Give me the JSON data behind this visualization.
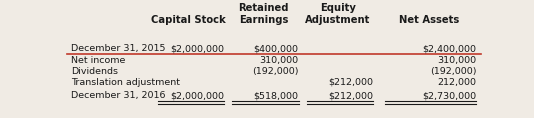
{
  "headers": [
    "",
    "Capital Stock",
    "Retained\nEarnings",
    "Equity\nAdjustment",
    "Net Assets"
  ],
  "rows": [
    [
      "December 31, 2015",
      "$2,000,000",
      "$400,000",
      "",
      "$2,400,000"
    ],
    [
      "Net income",
      "",
      "310,000",
      "",
      "310,000"
    ],
    [
      "Dividends",
      "",
      "(192,000)",
      "",
      "(192,000)"
    ],
    [
      "Translation adjustment",
      "",
      "",
      "$212,000",
      "212,000"
    ],
    [
      "December 31, 2016",
      "$2,000,000",
      "$518,000",
      "$212,000",
      "$2,730,000"
    ]
  ],
  "col_alignments": [
    "left",
    "right",
    "right",
    "right",
    "right"
  ],
  "header_line_color": "#c0392b",
  "bg_color": "#f0ebe4",
  "text_color": "#1a1a1a",
  "font_size": 6.8,
  "header_font_size": 7.2,
  "fig_width": 5.34,
  "fig_height": 1.18
}
